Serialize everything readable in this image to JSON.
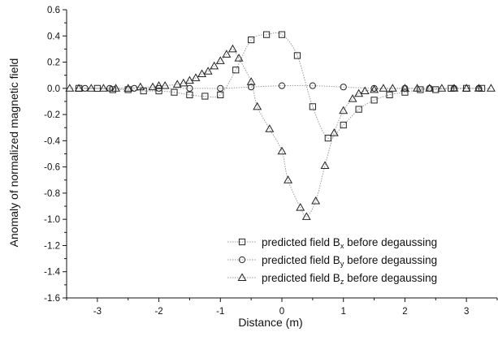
{
  "chart_data": {
    "type": "line",
    "title": "",
    "xlabel": "Distance (m)",
    "ylabel": "Anomaly of normalized magnetic field",
    "xlim": [
      -3.5,
      3.5
    ],
    "ylim": [
      -1.6,
      0.6
    ],
    "x_ticks": [
      -3,
      -2,
      -1,
      0,
      1,
      2,
      3
    ],
    "x_tick_labels": [
      "-3",
      "-2",
      "-1",
      "0",
      "1",
      "2",
      "3"
    ],
    "y_ticks": [
      0.6,
      0.4,
      0.2,
      0.0,
      -0.2,
      -0.4,
      -0.6,
      -0.8,
      -1.0,
      -1.2,
      -1.4,
      -1.6
    ],
    "y_tick_labels": [
      "0.6",
      "0.4",
      "0.2",
      "0.0",
      "-0.2",
      "-0.4",
      "-0.6",
      "-0.8",
      "-1.0",
      "-1.2",
      "-1.4",
      "-1.6"
    ],
    "grid": false,
    "legend_position": "bottom-right",
    "line_color": "#9a9a9a",
    "marker_color": "#222222",
    "series": [
      {
        "name": "predicted field Bx before degaussing",
        "label_main": "predicted field B",
        "label_sub": "x",
        "label_suffix": " before degaussing",
        "marker": "square",
        "x": [
          -3.3,
          -3.0,
          -2.75,
          -2.5,
          -2.25,
          -2.0,
          -1.75,
          -1.5,
          -1.25,
          -1.0,
          -0.75,
          -0.5,
          -0.25,
          0.0,
          0.25,
          0.5,
          0.75,
          1.0,
          1.25,
          1.5,
          1.75,
          2.0,
          2.25,
          2.5,
          2.75,
          3.0,
          3.25
        ],
        "y": [
          0.0,
          0.0,
          -0.01,
          -0.01,
          -0.02,
          -0.02,
          -0.03,
          -0.05,
          -0.06,
          -0.05,
          0.14,
          0.37,
          0.41,
          0.41,
          0.25,
          -0.14,
          -0.38,
          -0.28,
          -0.16,
          -0.09,
          -0.05,
          -0.03,
          -0.01,
          -0.01,
          0.0,
          0.0,
          0.0
        ]
      },
      {
        "name": "predicted field By before degaussing",
        "label_main": "predicted field B",
        "label_sub": "y",
        "label_suffix": " before degaussing",
        "marker": "circle",
        "x": [
          -3.2,
          -2.8,
          -2.4,
          -2.0,
          -1.5,
          -1.0,
          -0.5,
          0.0,
          0.5,
          1.0,
          1.5,
          2.0,
          2.4,
          2.8,
          3.2
        ],
        "y": [
          0.0,
          0.0,
          0.0,
          0.0,
          0.0,
          0.0,
          0.01,
          0.02,
          0.02,
          0.01,
          0.0,
          0.0,
          0.0,
          0.0,
          0.0
        ]
      },
      {
        "name": "predicted field Bz before degaussing",
        "label_main": "predicted field B",
        "label_sub": "z",
        "label_suffix": " before degaussing",
        "marker": "triangle",
        "x": [
          -3.45,
          -3.3,
          -3.1,
          -2.9,
          -2.7,
          -2.5,
          -2.3,
          -2.1,
          -2.0,
          -1.9,
          -1.7,
          -1.6,
          -1.5,
          -1.4,
          -1.3,
          -1.2,
          -1.1,
          -1.0,
          -0.9,
          -0.8,
          -0.7,
          -0.5,
          -0.4,
          -0.2,
          0.0,
          0.1,
          0.3,
          0.4,
          0.55,
          0.7,
          0.85,
          1.0,
          1.15,
          1.25,
          1.35,
          1.5,
          1.65,
          1.8,
          2.0,
          2.2,
          2.4,
          2.6,
          2.8,
          3.0,
          3.2,
          3.4
        ],
        "y": [
          0.0,
          0.0,
          0.0,
          0.0,
          0.0,
          0.0,
          0.01,
          0.01,
          0.02,
          0.02,
          0.03,
          0.04,
          0.06,
          0.08,
          0.11,
          0.13,
          0.17,
          0.21,
          0.26,
          0.3,
          0.23,
          0.05,
          -0.14,
          -0.31,
          -0.48,
          -0.7,
          -0.91,
          -0.98,
          -0.86,
          -0.59,
          -0.34,
          -0.17,
          -0.08,
          -0.04,
          -0.02,
          -0.01,
          0.0,
          0.0,
          0.0,
          0.0,
          0.0,
          0.0,
          0.0,
          0.0,
          0.0,
          0.0
        ]
      }
    ]
  }
}
